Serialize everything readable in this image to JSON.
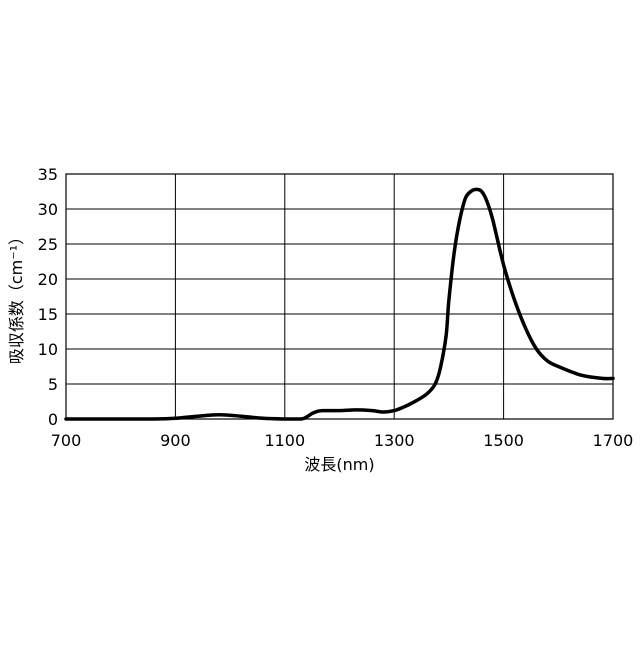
{
  "chart_data": {
    "type": "line",
    "title": "",
    "xlabel": "波長(nm)",
    "ylabel": "吸収係数（cm⁻¹）",
    "xlim": [
      700,
      1700
    ],
    "ylim": [
      0,
      35
    ],
    "x_ticks": [
      "700",
      "900",
      "1100",
      "1300",
      "1500",
      "1700"
    ],
    "y_ticks": [
      "0",
      "5",
      "10",
      "15",
      "20",
      "25",
      "30",
      "35"
    ],
    "grid": true,
    "series": [
      {
        "x": [
          700,
          800,
          860,
          900,
          940,
          980,
          1020,
          1060,
          1100,
          1130,
          1140,
          1150,
          1160,
          1170,
          1200,
          1230,
          1260,
          1280,
          1300,
          1320,
          1340,
          1360,
          1375,
          1385,
          1395,
          1400,
          1410,
          1420,
          1430,
          1440,
          1450,
          1460,
          1470,
          1480,
          1500,
          1520,
          1540,
          1560,
          1580,
          1600,
          1640,
          1680,
          1700
        ],
        "y": [
          0,
          0,
          0,
          0.1,
          0.4,
          0.6,
          0.4,
          0.1,
          0,
          0,
          0.3,
          0.8,
          1.1,
          1.2,
          1.2,
          1.3,
          1.2,
          1.0,
          1.2,
          1.8,
          2.6,
          3.6,
          5.0,
          7.5,
          12,
          17,
          24,
          28.5,
          31.5,
          32.5,
          32.8,
          32.5,
          31,
          28.5,
          22,
          17,
          13,
          10,
          8.3,
          7.5,
          6.3,
          5.8,
          5.8
        ]
      }
    ]
  }
}
